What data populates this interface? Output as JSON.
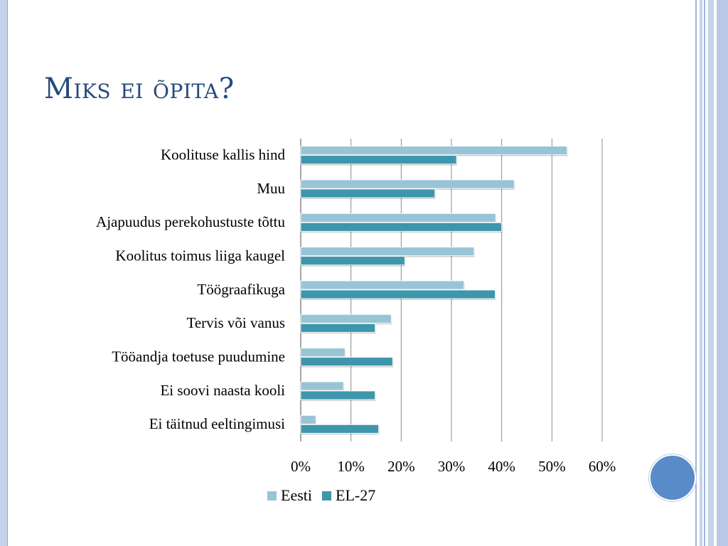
{
  "slide": {
    "title": "Miks ei õpita?"
  },
  "colors": {
    "eesti": "#98c4d6",
    "el27": "#3e96ad",
    "title": "#264a7c",
    "accent_circle": "#5a8bc9"
  },
  "chart_data": {
    "type": "bar",
    "orientation": "horizontal",
    "title": "",
    "xlabel": "",
    "ylabel": "",
    "categories": [
      "Koolituse kallis hind",
      "Muu",
      "Ajapuudus perekohustuste tõttu",
      "Koolitus toimus liiga kaugel",
      "Töögraafikuga",
      "Tervis või vanus",
      "Tööandja toetuse puudumine",
      "Ei soovi naasta kooli",
      "Ei täitnud eeltingimusi"
    ],
    "series": [
      {
        "name": "Eesti",
        "values": [
          53,
          42.5,
          38.8,
          34.5,
          32.5,
          18,
          8.8,
          8.5,
          3
        ]
      },
      {
        "name": "EL-27",
        "values": [
          31,
          26.7,
          40,
          20.7,
          38.7,
          14.8,
          18.3,
          14.8,
          15.5
        ]
      }
    ],
    "xlim": [
      0,
      60
    ],
    "xticks": [
      "0%",
      "10%",
      "20%",
      "30%",
      "40%",
      "50%",
      "60%"
    ],
    "grid": "vertical",
    "legend_position": "bottom"
  }
}
